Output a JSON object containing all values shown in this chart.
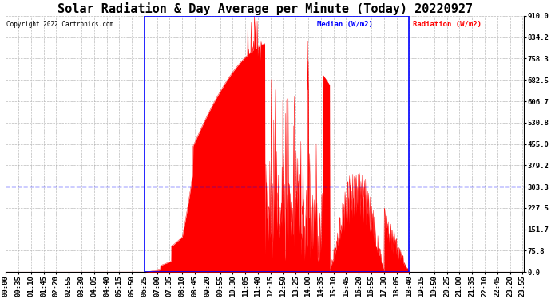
{
  "title": "Solar Radiation & Day Average per Minute (Today) 20220927",
  "copyright": "Copyright 2022 Cartronics.com",
  "legend_median": "Median (W/m2)",
  "legend_radiation": "Radiation (W/m2)",
  "ymin": 0.0,
  "ymax": 910.0,
  "yticks": [
    0.0,
    75.8,
    151.7,
    227.5,
    303.3,
    379.2,
    455.0,
    530.8,
    606.7,
    682.5,
    758.3,
    834.2,
    910.0
  ],
  "median_value": 303.3,
  "rect_x0_minutes": 385,
  "rect_x1_minutes": 1120,
  "background_color": "#ffffff",
  "grid_color": "#aaaaaa",
  "radiation_color": "#ff0000",
  "median_color": "#0000ff",
  "rect_color": "#0000ff",
  "title_fontsize": 11,
  "tick_fontsize": 6.5,
  "xtick_minutes": [
    0,
    35,
    70,
    105,
    140,
    175,
    210,
    245,
    280,
    315,
    350,
    385,
    420,
    455,
    490,
    525,
    560,
    595,
    630,
    665,
    700,
    735,
    770,
    805,
    840,
    875,
    910,
    945,
    980,
    1015,
    1050,
    1085,
    1120,
    1155,
    1190,
    1225,
    1260,
    1295,
    1330,
    1365,
    1400,
    1435
  ],
  "xtick_labels": [
    "00:00",
    "00:35",
    "01:10",
    "01:45",
    "02:20",
    "02:55",
    "03:30",
    "04:05",
    "04:40",
    "05:15",
    "05:50",
    "06:25",
    "07:00",
    "07:35",
    "08:10",
    "08:45",
    "09:20",
    "09:55",
    "10:30",
    "11:05",
    "11:40",
    "12:15",
    "12:50",
    "13:25",
    "14:00",
    "14:35",
    "15:10",
    "15:45",
    "16:20",
    "16:55",
    "17:30",
    "18:05",
    "18:40",
    "19:15",
    "19:50",
    "20:25",
    "21:00",
    "21:35",
    "22:10",
    "22:45",
    "23:20",
    "23:55"
  ]
}
